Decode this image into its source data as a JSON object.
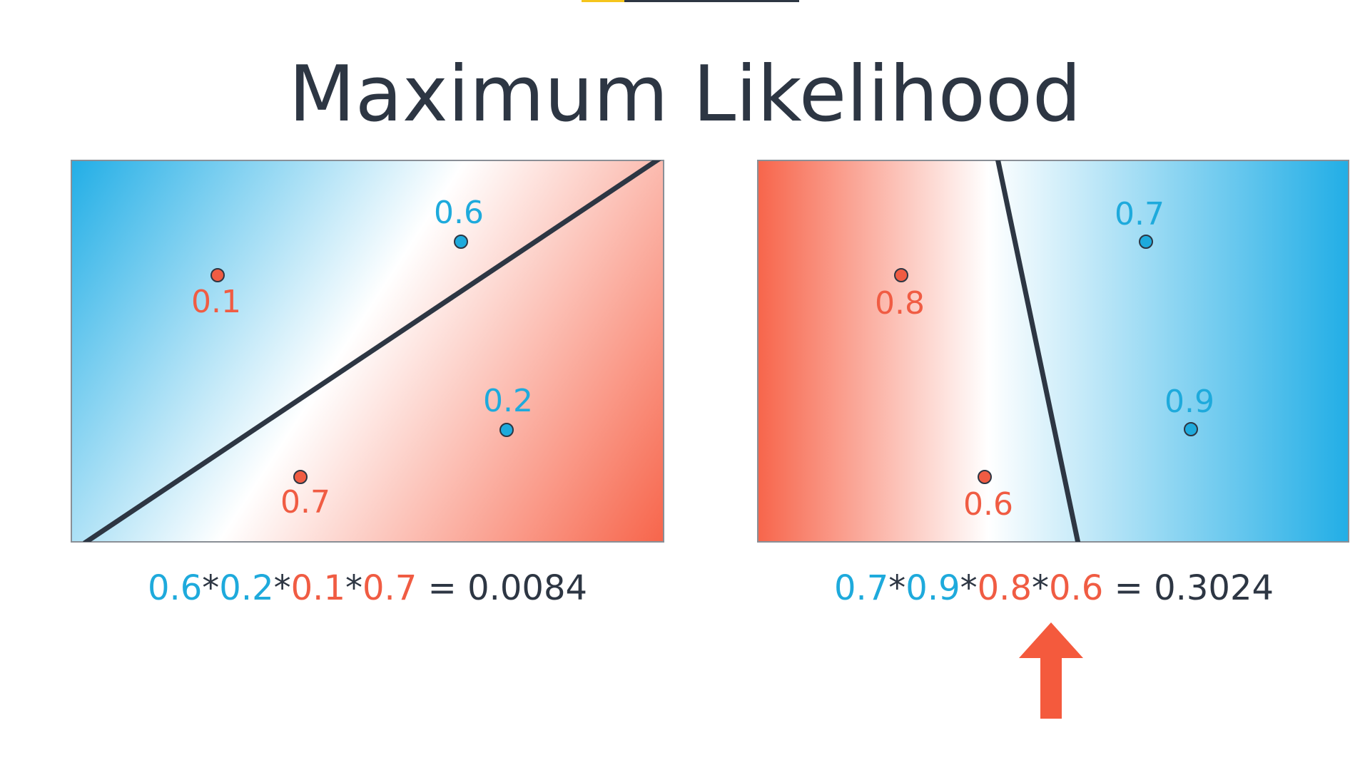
{
  "title": "Maximum Likelihood",
  "colors": {
    "blue": "#1eaadc",
    "red": "#f05c43",
    "dark": "#2d3643",
    "arrow": "#f45a3d"
  },
  "left_panel": {
    "points": [
      {
        "label": "0.6",
        "class": "blue"
      },
      {
        "label": "0.1",
        "class": "red"
      },
      {
        "label": "0.2",
        "class": "blue"
      },
      {
        "label": "0.7",
        "class": "red"
      }
    ],
    "formula": {
      "factors": [
        "0.6",
        "0.2",
        "0.1",
        "0.7"
      ],
      "factor_classes": [
        "blue",
        "blue",
        "red",
        "red"
      ],
      "operator": "*",
      "equals": "=",
      "result": "0.0084"
    }
  },
  "right_panel": {
    "points": [
      {
        "label": "0.7",
        "class": "blue"
      },
      {
        "label": "0.8",
        "class": "red"
      },
      {
        "label": "0.9",
        "class": "blue"
      },
      {
        "label": "0.6",
        "class": "red"
      }
    ],
    "formula": {
      "factors": [
        "0.7",
        "0.9",
        "0.8",
        "0.6"
      ],
      "factor_classes": [
        "blue",
        "blue",
        "red",
        "red"
      ],
      "operator": "*",
      "equals": "=",
      "result": "0.3024"
    }
  },
  "arrow_icon": "up-arrow-icon"
}
